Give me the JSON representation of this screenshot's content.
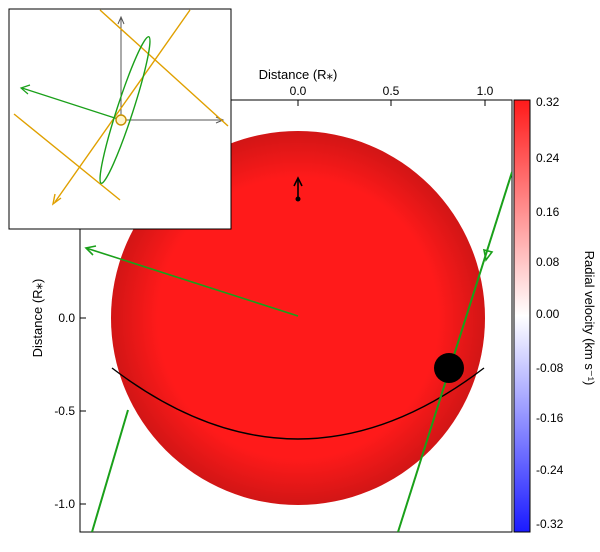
{
  "figure": {
    "x_axis_title": "Distance (R⁎)",
    "y_axis_title": "Distance (R⁎)",
    "x_ticks": [
      "0.0",
      "0.5",
      "1.0"
    ],
    "y_ticks": [
      "0.0",
      "-0.5",
      "-1.0"
    ],
    "colorbar": {
      "title": "Radial velocity (km s⁻¹)",
      "ticks": [
        "0.32",
        "0.24",
        "0.16",
        "0.08",
        "0.00",
        "-0.08",
        "-0.16",
        "-0.24",
        "-0.32"
      ],
      "min_color": "#1a1aff",
      "mid_color": "#ffffff",
      "max_color": "#ff1a1a"
    },
    "colors": {
      "orbit_green": "#1aa01a",
      "spin_orange": "#e0a000",
      "planet": "#000000",
      "path_line": "#000000"
    },
    "star": {
      "radius_rstar": 1.0,
      "center": [
        0.0,
        0.0
      ]
    },
    "planet": {
      "x_rstar": 0.8,
      "y_rstar": -0.27
    },
    "spin_arrow": {
      "x_rstar": 0.0,
      "y_rstar": 0.6
    },
    "inset": {
      "label": "3D orbit geometry inset"
    }
  }
}
